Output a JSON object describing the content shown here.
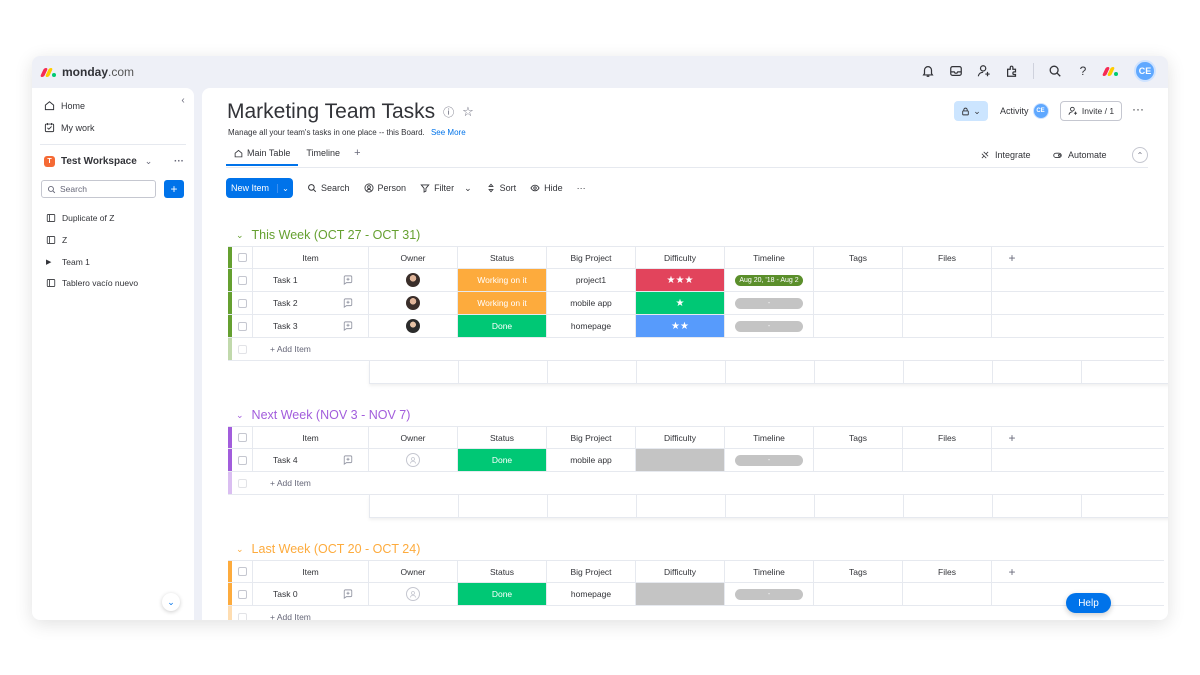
{
  "brand": {
    "name": "monday",
    "suffix": ".com",
    "logo_colors": [
      "#f62b54",
      "#ffcc00",
      "#00ca72"
    ]
  },
  "topbar": {
    "icons": [
      "bell-icon",
      "inbox-icon",
      "invite-members-icon",
      "apps-icon",
      "search-icon",
      "help-icon"
    ],
    "user_initials": "CE"
  },
  "sidebar": {
    "nav": [
      {
        "label": "Home",
        "icon": "home-icon"
      },
      {
        "label": "My work",
        "icon": "my-work-icon"
      }
    ],
    "workspace": {
      "badge": "T",
      "name": "Test Workspace"
    },
    "search_placeholder": "Search",
    "boards": [
      {
        "label": "Duplicate of Z",
        "icon": "board-icon"
      },
      {
        "label": "Z",
        "icon": "board-icon"
      },
      {
        "label": "Team 1",
        "icon": "folder-caret-icon"
      },
      {
        "label": "Tablero vacío nuevo",
        "icon": "board-icon"
      }
    ]
  },
  "board": {
    "title": "Marketing Team Tasks",
    "description": "Manage all your team's tasks in one place -- this Board.",
    "see_more": "See More",
    "activity_label": "Activity",
    "activity_initials": "CE",
    "invite_label": "Invite / 1",
    "tabs": [
      {
        "label": "Main Table",
        "active": true
      },
      {
        "label": "Timeline",
        "active": false
      }
    ],
    "integrate_label": "Integrate",
    "automate_label": "Automate",
    "toolbar": {
      "new_item": "New Item",
      "search": "Search",
      "person": "Person",
      "filter": "Filter",
      "sort": "Sort",
      "hide": "Hide"
    }
  },
  "columns": [
    "Item",
    "Owner",
    "Status",
    "Big Project",
    "Difficulty",
    "Timeline",
    "Tags",
    "Files"
  ],
  "add_item_label": "+ Add Item",
  "colors": {
    "working": "#fdab3d",
    "done": "#00c875",
    "stuck_red": "#e2445c",
    "difficulty_green": "#00c875",
    "difficulty_blue": "#579bfc",
    "empty": "#c4c4c4",
    "timeline_on": "#5b8f2b"
  },
  "groups": [
    {
      "title": "This Week (OCT 27 - OCT 31)",
      "color": "#65a030",
      "rows": [
        {
          "item": "Task 1",
          "owner": "photo-m",
          "status": "Working on it",
          "status_color": "#fdab3d",
          "project": "project1",
          "difficulty": "★★★",
          "difficulty_color": "#e2445c",
          "timeline": "Aug 20, '18 - Aug 2",
          "timeline_on": true
        },
        {
          "item": "Task 2",
          "owner": "photo-m",
          "status": "Working on it",
          "status_color": "#fdab3d",
          "project": "mobile app",
          "difficulty": "★",
          "difficulty_color": "#00c875",
          "timeline": "-",
          "timeline_on": false
        },
        {
          "item": "Task 3",
          "owner": "photo-f",
          "status": "Done",
          "status_color": "#00c875",
          "project": "homepage",
          "difficulty": "★★",
          "difficulty_color": "#579bfc",
          "timeline": "-",
          "timeline_on": false
        }
      ]
    },
    {
      "title": "Next Week (NOV 3 - NOV 7)",
      "color": "#a25ddc",
      "rows": [
        {
          "item": "Task 4",
          "owner": "empty",
          "status": "Done",
          "status_color": "#00c875",
          "project": "mobile app",
          "difficulty": "",
          "difficulty_color": "#c4c4c4",
          "timeline": "-",
          "timeline_on": false
        }
      ]
    },
    {
      "title": "Last Week (OCT 20 - OCT 24)",
      "color": "#fdab3d",
      "rows": [
        {
          "item": "Task 0",
          "owner": "empty",
          "status": "Done",
          "status_color": "#00c875",
          "project": "homepage",
          "difficulty": "",
          "difficulty_color": "#c4c4c4",
          "timeline": "-",
          "timeline_on": false
        }
      ]
    }
  ],
  "help_label": "Help"
}
